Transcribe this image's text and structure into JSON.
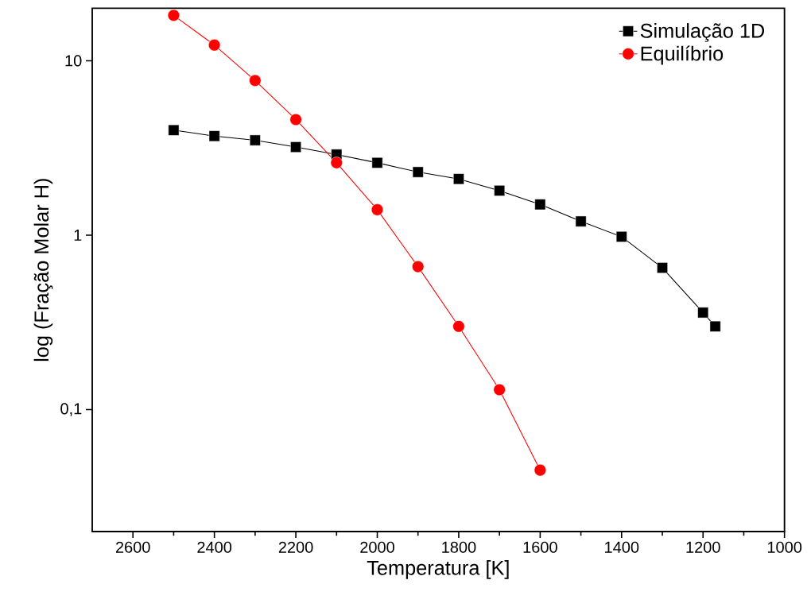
{
  "chart_data": {
    "type": "line",
    "xlabel": "Temperatura [K]",
    "ylabel": "log (Fração Molar H)",
    "log": "y",
    "grid": false,
    "legend": "top right",
    "line_style": "solid",
    "xlim": [
      2700,
      1000
    ],
    "xticks": [
      2600,
      2400,
      2200,
      2000,
      1800,
      1600,
      1400,
      1200,
      1000
    ],
    "ylim": [
      0.02,
      20
    ],
    "yticks": [
      10,
      1,
      {
        "value": 0.1,
        "label": "0,1"
      }
    ],
    "series": [
      {
        "name": "Simulação 1D",
        "color": "#000000",
        "marker": "square",
        "x": [
          2500,
          2400,
          2300,
          2200,
          2100,
          2000,
          1900,
          1800,
          1700,
          1600,
          1500,
          1400,
          1300,
          1200,
          1170
        ],
        "values": [
          4.0,
          3.7,
          3.5,
          3.2,
          2.9,
          2.6,
          2.3,
          2.1,
          1.8,
          1.5,
          1.2,
          0.98,
          0.65,
          0.36,
          0.3
        ]
      },
      {
        "name": "Equilíbrio",
        "color": "#ff0000",
        "marker": "circle",
        "x": [
          2500,
          2400,
          2300,
          2200,
          2100,
          2000,
          1900,
          1800,
          1700,
          1600
        ],
        "values": [
          18.2,
          12.3,
          7.7,
          4.6,
          2.6,
          1.4,
          0.66,
          0.3,
          0.13,
          0.045
        ]
      }
    ]
  }
}
